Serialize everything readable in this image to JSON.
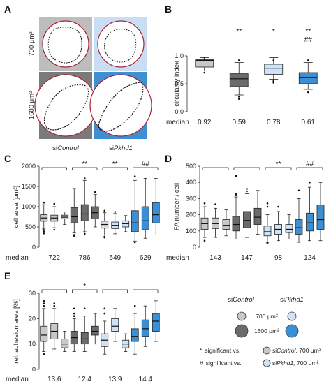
{
  "panel_letters": [
    "A",
    "B",
    "C",
    "D",
    "E"
  ],
  "panel_a": {
    "row_labels": [
      "700 μm²",
      "1600 μm²"
    ],
    "col_labels": [
      {
        "prefix": "si",
        "italic": "Control"
      },
      {
        "prefix": "si",
        "italic": "Pkhd1"
      }
    ]
  },
  "median_label": "median",
  "colors": {
    "ctrl_700": "#c8c8c8",
    "ctrl_1600": "#6b6b6b",
    "pkhd_700": "#cfe2f7",
    "pkhd_1600": "#3b8fd4",
    "ctrl_bg_700": "#bdbdbd",
    "ctrl_bg_1600": "#7a7a7a",
    "pkhd_bg_700": "#c9ddf4",
    "pkhd_bg_1600": "#3f8fd2"
  },
  "legend": {
    "col_ctrl": {
      "prefix": "si",
      "italic": "Control"
    },
    "col_pkhd": {
      "prefix": "si",
      "italic": "Pkhd1"
    },
    "row_700": "700 μm²",
    "row_1600": "1600 μm²",
    "note1_sym": "*",
    "note1_text": "significant  vs.",
    "note1_ref_prefix": "si",
    "note1_ref_italic": "Control,",
    "note1_ref_rest": " 700 μm²",
    "note2_sym": "#",
    "note2_text": "significant  vs.",
    "note2_ref_prefix": "si",
    "note2_ref_italic": "Pkhd1,",
    "note2_ref_rest": " 700 μm²"
  },
  "chart_data": [
    {
      "panel": "B",
      "type": "box",
      "ylabel": "circularity index",
      "ylim": [
        0,
        1.0
      ],
      "yticks": [
        0,
        0.5,
        1.0
      ],
      "ytick_labels": [
        "0.0",
        "0.5",
        "1.0"
      ],
      "categories": [
        "siControl 700 μm²",
        "siControl 1600 μm²",
        "siPkhd1 700 μm²",
        "siPkhd1 1600 μm²"
      ],
      "boxes": [
        {
          "min": 0.73,
          "q1": 0.8,
          "median": 0.92,
          "q3": 0.93,
          "max": 0.97,
          "outliers": [
            0.97,
            0.7
          ],
          "color": "ctrl_700"
        },
        {
          "min": 0.3,
          "q1": 0.45,
          "median": 0.59,
          "q3": 0.68,
          "max": 0.88,
          "outliers": [
            0.92,
            0.27,
            0.23
          ],
          "color": "ctrl_1600"
        },
        {
          "min": 0.58,
          "q1": 0.67,
          "median": 0.78,
          "q3": 0.85,
          "max": 0.97,
          "outliers": [
            0.92,
            0.55,
            0.52
          ],
          "color": "pkhd_700"
        },
        {
          "min": 0.4,
          "q1": 0.5,
          "median": 0.61,
          "q3": 0.7,
          "max": 0.88,
          "outliers": [
            0.92,
            0.35
          ],
          "color": "pkhd_1600"
        }
      ],
      "significance": [
        "",
        "**",
        "*",
        "**"
      ],
      "significance2": [
        "",
        "",
        "",
        "##"
      ],
      "medians": [
        "0.92",
        "0.59",
        "0.78",
        "0.61"
      ]
    },
    {
      "panel": "C",
      "type": "box",
      "ylabel": "cell area [μm²]",
      "ylim": [
        0,
        2000
      ],
      "yticks": [
        0,
        500,
        1000,
        1500,
        2000
      ],
      "ytick_labels": [
        "0",
        "500",
        "1000",
        "1500",
        "2000"
      ],
      "groups": [
        "siControl 700 μm²",
        "siControl 1600 μm²",
        "siPkhd1 700 μm²",
        "siPkhd1 1600 μm²"
      ],
      "boxes": [
        {
          "min": 450,
          "q1": 640,
          "median": 720,
          "q3": 800,
          "max": 1050,
          "outliers": [
            1100,
            420,
            380,
            340
          ],
          "color": "ctrl_700"
        },
        {
          "min": 480,
          "q1": 640,
          "median": 720,
          "q3": 790,
          "max": 1000,
          "outliers": [
            1070,
            430
          ],
          "color": "ctrl_700"
        },
        {
          "min": 560,
          "q1": 700,
          "median": 740,
          "q3": 790,
          "max": 870,
          "outliers": [],
          "color": "ctrl_700"
        },
        {
          "min": 350,
          "q1": 600,
          "median": 750,
          "q3": 980,
          "max": 1450,
          "outliers": [
            300,
            280
          ],
          "color": "ctrl_1600"
        },
        {
          "min": 380,
          "q1": 650,
          "median": 820,
          "q3": 1050,
          "max": 1650,
          "outliers": [
            1700,
            330
          ],
          "color": "ctrl_1600"
        },
        {
          "min": 500,
          "q1": 700,
          "median": 850,
          "q3": 1000,
          "max": 1300,
          "outliers": [
            1360
          ],
          "color": "ctrl_1600"
        },
        {
          "min": 300,
          "q1": 470,
          "median": 560,
          "q3": 640,
          "max": 850,
          "outliers": [
            900,
            260,
            240
          ],
          "color": "pkhd_700"
        },
        {
          "min": 330,
          "q1": 460,
          "median": 540,
          "q3": 620,
          "max": 830,
          "outliers": [
            870
          ],
          "color": "pkhd_700"
        },
        {
          "min": 380,
          "q1": 500,
          "median": 580,
          "q3": 650,
          "max": 780,
          "outliers": [],
          "color": "pkhd_700"
        },
        {
          "min": 150,
          "q1": 380,
          "median": 600,
          "q3": 900,
          "max": 1650,
          "outliers": [
            1750,
            120
          ],
          "color": "pkhd_1600"
        },
        {
          "min": 220,
          "q1": 430,
          "median": 650,
          "q3": 1000,
          "max": 1700,
          "outliers": [],
          "color": "pkhd_1600"
        },
        {
          "min": 300,
          "q1": 600,
          "median": 800,
          "q3": 1100,
          "max": 1700,
          "outliers": [],
          "color": "pkhd_1600"
        }
      ],
      "significance": [
        "",
        "**",
        "**",
        "##"
      ],
      "medians": [
        "722",
        "786",
        "549",
        "629"
      ]
    },
    {
      "panel": "D",
      "type": "box",
      "ylabel": "FA number / cell",
      "ylim": [
        0,
        500
      ],
      "yticks": [
        0,
        100,
        200,
        300,
        400,
        500
      ],
      "ytick_labels": [
        "0",
        "100",
        "200",
        "300",
        "400",
        "500"
      ],
      "groups": [
        "siControl 700 μm²",
        "siControl 1600 μm²",
        "siPkhd1 700 μm²",
        "siPkhd1 1600 μm²"
      ],
      "boxes": [
        {
          "min": 60,
          "q1": 110,
          "median": 145,
          "q3": 180,
          "max": 250,
          "outliers": [
            270,
            40
          ],
          "color": "ctrl_700"
        },
        {
          "min": 60,
          "q1": 115,
          "median": 145,
          "q3": 180,
          "max": 240,
          "outliers": [
            265
          ],
          "color": "ctrl_700"
        },
        {
          "min": 70,
          "q1": 110,
          "median": 135,
          "q3": 170,
          "max": 230,
          "outliers": [],
          "color": "ctrl_700"
        },
        {
          "min": 50,
          "q1": 100,
          "median": 140,
          "q3": 190,
          "max": 310,
          "outliers": [
            440,
            330,
            320
          ],
          "color": "ctrl_1600"
        },
        {
          "min": 60,
          "q1": 120,
          "median": 165,
          "q3": 220,
          "max": 330,
          "outliers": [
            360,
            345
          ],
          "color": "ctrl_1600"
        },
        {
          "min": 80,
          "q1": 140,
          "median": 185,
          "q3": 240,
          "max": 350,
          "outliers": [],
          "color": "ctrl_1600"
        },
        {
          "min": 30,
          "q1": 70,
          "median": 95,
          "q3": 130,
          "max": 200,
          "outliers": [
            270,
            250,
            25
          ],
          "color": "pkhd_700"
        },
        {
          "min": 40,
          "q1": 80,
          "median": 110,
          "q3": 140,
          "max": 220,
          "outliers": [
            250
          ],
          "color": "pkhd_700"
        },
        {
          "min": 50,
          "q1": 90,
          "median": 110,
          "q3": 140,
          "max": 200,
          "outliers": [],
          "color": "pkhd_700"
        },
        {
          "min": 30,
          "q1": 80,
          "median": 120,
          "q3": 170,
          "max": 300,
          "outliers": [
            350
          ],
          "color": "pkhd_1600"
        },
        {
          "min": 40,
          "q1": 100,
          "median": 150,
          "q3": 210,
          "max": 370,
          "outliers": [
            400
          ],
          "color": "pkhd_1600"
        },
        {
          "min": 40,
          "q1": 110,
          "median": 170,
          "q3": 260,
          "max": 400,
          "outliers": [],
          "color": "pkhd_1600"
        }
      ],
      "significance": [
        "",
        "",
        "**",
        "##"
      ],
      "medians": [
        "143",
        "147",
        "98",
        "124"
      ]
    },
    {
      "panel": "E",
      "type": "box",
      "ylabel": "rel. adhesion area [%]",
      "ylim": [
        0,
        30
      ],
      "yticks": [
        0,
        10,
        20,
        30
      ],
      "ytick_labels": [
        "0",
        "10",
        "20",
        "30"
      ],
      "groups": [
        "siControl 700 μm²",
        "siControl 1600 μm²",
        "siPkhd1 700 μm²",
        "siPkhd1 1600 μm²"
      ],
      "boxes": [
        {
          "min": 7,
          "q1": 11,
          "median": 13.5,
          "q3": 17,
          "max": 24,
          "outliers": [
            27,
            26,
            25,
            6
          ],
          "color": "ctrl_700"
        },
        {
          "min": 8,
          "q1": 12,
          "median": 15,
          "q3": 18,
          "max": 24,
          "outliers": [
            26,
            25
          ],
          "color": "ctrl_700"
        },
        {
          "min": 7,
          "q1": 8.5,
          "median": 10,
          "q3": 12,
          "max": 15,
          "outliers": [],
          "color": "ctrl_700"
        },
        {
          "min": 7,
          "q1": 10,
          "median": 12.5,
          "q3": 15,
          "max": 20,
          "outliers": [
            24,
            22,
            21
          ],
          "color": "ctrl_1600"
        },
        {
          "min": 7,
          "q1": 10,
          "median": 12,
          "q3": 14.5,
          "max": 21,
          "outliers": [
            24
          ],
          "color": "ctrl_1600"
        },
        {
          "min": 10,
          "q1": 13.5,
          "median": 15,
          "q3": 17,
          "max": 22,
          "outliers": [],
          "color": "ctrl_1600"
        },
        {
          "min": 6,
          "q1": 9,
          "median": 11.5,
          "q3": 14,
          "max": 19,
          "outliers": [
            24,
            22
          ],
          "color": "pkhd_700"
        },
        {
          "min": 11,
          "q1": 15,
          "median": 17,
          "q3": 20,
          "max": 24,
          "outliers": [],
          "color": "pkhd_700"
        },
        {
          "min": 7,
          "q1": 8.5,
          "median": 10,
          "q3": 11.5,
          "max": 14,
          "outliers": [],
          "color": "pkhd_700"
        },
        {
          "min": 6,
          "q1": 11,
          "median": 13,
          "q3": 16,
          "max": 22,
          "outliers": [
            25
          ],
          "color": "pkhd_1600"
        },
        {
          "min": 9,
          "q1": 13,
          "median": 16,
          "q3": 19.5,
          "max": 25,
          "outliers": [],
          "color": "pkhd_1600"
        },
        {
          "min": 11,
          "q1": 15,
          "median": 19,
          "q3": 22,
          "max": 27,
          "outliers": [],
          "color": "pkhd_1600"
        }
      ],
      "significance": [
        "",
        "*",
        "",
        ""
      ],
      "medians": [
        "13.6",
        "12.4",
        "13.9",
        "14.4"
      ]
    }
  ]
}
